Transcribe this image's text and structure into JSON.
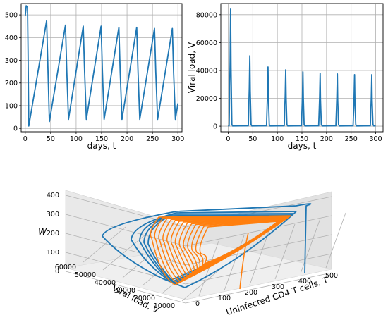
{
  "colors": {
    "series_blue": "#1f77b4",
    "series_orange": "#ff7f0e",
    "grid": "#b0b0b0",
    "pane_left": "#e9e9e9",
    "pane_right": "#e2e2e2",
    "pane_floor": "#efefef"
  },
  "chart_data": [
    {
      "type": "line",
      "xlabel": "days, t",
      "ylabel": "",
      "xlim": [
        -8,
        308
      ],
      "ylim": [
        -15,
        550
      ],
      "xticks": [
        0,
        50,
        100,
        150,
        200,
        250,
        300
      ],
      "yticks": [
        0,
        100,
        200,
        300,
        400,
        500
      ],
      "grid": true,
      "series": [
        {
          "color": "#1f77b4",
          "x": [
            0,
            2,
            4.5,
            5.5,
            7,
            42,
            44.5,
            47.5,
            79,
            81.5,
            85,
            114,
            116.5,
            120,
            149,
            151.5,
            155,
            184,
            186.5,
            190,
            219,
            221.5,
            225,
            254,
            256.5,
            260,
            289,
            291.5,
            295,
            300
          ],
          "y": [
            495,
            540,
            535,
            350,
            10,
            475,
            270,
            30,
            455,
            260,
            40,
            450,
            260,
            40,
            450,
            260,
            40,
            445,
            255,
            40,
            445,
            255,
            40,
            440,
            250,
            40,
            440,
            245,
            40,
            110
          ]
        }
      ]
    },
    {
      "type": "line",
      "xlabel": "days, t",
      "ylabel": "Viral load, V",
      "xlim": [
        -15,
        315
      ],
      "ylim": [
        -4000,
        88000
      ],
      "xticks": [
        0,
        50,
        100,
        150,
        200,
        250,
        300
      ],
      "yticks": [
        0,
        20000,
        40000,
        60000,
        80000
      ],
      "grid": true,
      "series": [
        {
          "color": "#1f77b4",
          "peaks": [
            [
              5,
              84000
            ],
            [
              44,
              50500
            ],
            [
              81,
              42500
            ],
            [
              117,
              40500
            ],
            [
              152,
              39000
            ],
            [
              187,
              38000
            ],
            [
              222,
              37500
            ],
            [
              257,
              37000
            ],
            [
              292,
              37000
            ]
          ]
        }
      ]
    },
    {
      "type": "line3d",
      "xlabel": "Uninfected CD4 T cells, T",
      "ylabel": "Viral load, V",
      "zlabel": "W",
      "xticks": [
        0,
        100,
        200,
        300,
        400,
        500
      ],
      "yticks": [
        10000,
        20000,
        30000,
        40000,
        50000,
        60000
      ],
      "zticks": [
        0,
        100,
        200,
        300,
        400
      ],
      "series": [
        {
          "name": "",
          "color": "#1f77b4"
        },
        {
          "name": "",
          "color": "#ff7f0e"
        }
      ]
    }
  ]
}
